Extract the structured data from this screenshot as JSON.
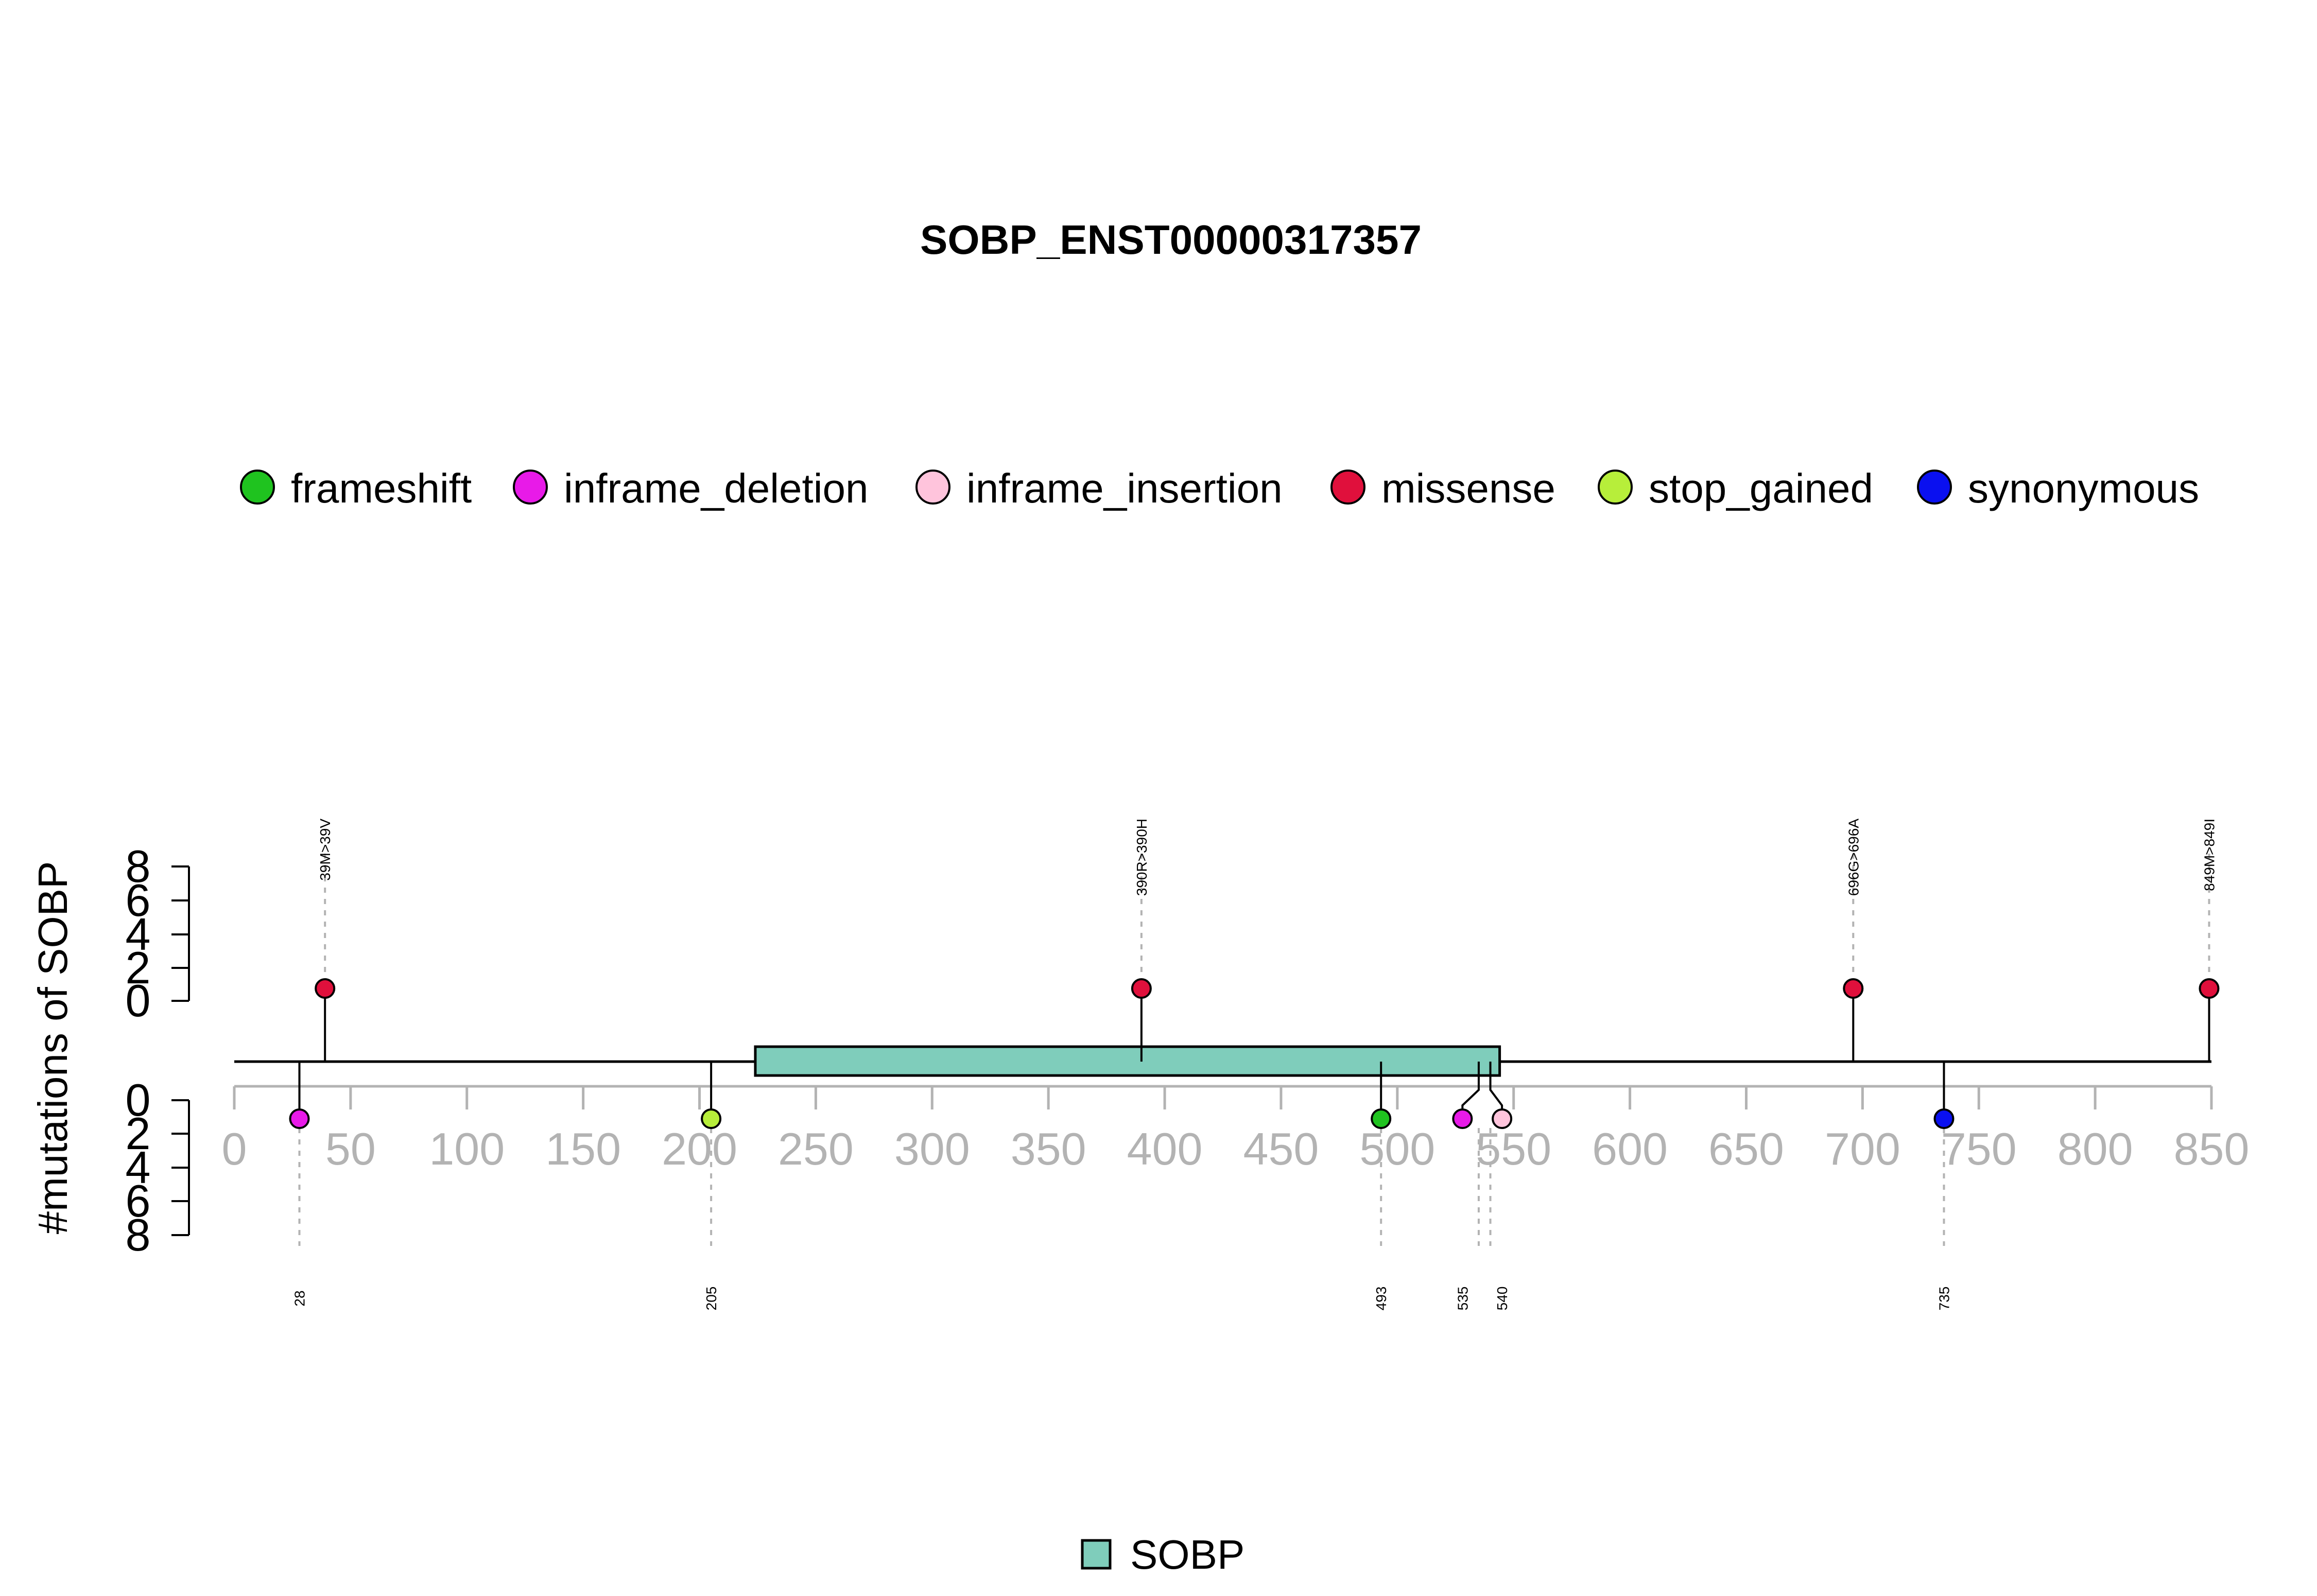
{
  "chart_data": {
    "type": "lollipop",
    "title": "SOBP_ENST00000317357",
    "ylabel": "#mutations of SOBP",
    "xlim": [
      0,
      850
    ],
    "x_ticks": [
      "0",
      "50",
      "100",
      "150",
      "200",
      "250",
      "300",
      "350",
      "400",
      "450",
      "500",
      "550",
      "600",
      "650",
      "700",
      "750",
      "800",
      "850"
    ],
    "y_ticks_top": [
      "8",
      "6",
      "4",
      "2",
      "0"
    ],
    "y_ticks_bottom": [
      "0",
      "2",
      "4",
      "6",
      "8"
    ],
    "legend": [
      {
        "name": "frameshift",
        "color": "#1fc31f"
      },
      {
        "name": "inframe_deletion",
        "color": "#e81ae8"
      },
      {
        "name": "inframe_insertion",
        "color": "#ffc4dc"
      },
      {
        "name": "missense",
        "color": "#e0103c"
      },
      {
        "name": "stop_gained",
        "color": "#b7ee3a"
      },
      {
        "name": "synonymous",
        "color": "#0a10f0"
      }
    ],
    "domain_legend": {
      "name": "SOBP",
      "color": "#7fcdbb"
    },
    "domains": [
      {
        "name": "SOBP",
        "start": 224,
        "end": 544,
        "color": "#7fcdbb"
      }
    ],
    "protein_length": 850,
    "mutations_top": [
      {
        "position": 39,
        "label": "39M>39V",
        "type": "missense",
        "count": 1
      },
      {
        "position": 390,
        "label": "390R>390H",
        "type": "missense",
        "count": 1
      },
      {
        "position": 696,
        "label": "696G>696A",
        "type": "missense",
        "count": 1
      },
      {
        "position": 849,
        "label": "849M>849I",
        "type": "missense",
        "count": 1
      }
    ],
    "mutations_bottom": [
      {
        "position": 28,
        "label": "28",
        "type": "inframe_deletion",
        "count": 1
      },
      {
        "position": 205,
        "label": "205",
        "type": "stop_gained",
        "count": 1
      },
      {
        "position": 493,
        "label": "493",
        "type": "frameshift",
        "count": 1
      },
      {
        "position": 535,
        "label": "535",
        "type": "inframe_deletion",
        "count": 1
      },
      {
        "position": 540,
        "label": "540",
        "type": "inframe_insertion",
        "count": 1
      },
      {
        "position": 735,
        "label": "735",
        "type": "synonymous",
        "count": 1
      }
    ]
  }
}
